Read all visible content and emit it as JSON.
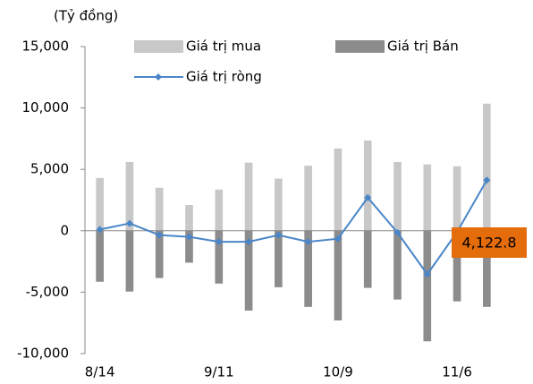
{
  "chart_data": {
    "type": "bar",
    "y_axis_label": "(Tỷ đồng)",
    "categories": [
      "8/14",
      null,
      null,
      null,
      "9/11",
      null,
      null,
      null,
      "10/9",
      null,
      null,
      null,
      "11/6",
      null
    ],
    "series": [
      {
        "name": "Giá trị mua",
        "type": "bar",
        "color": "#c8c8c8",
        "values": [
          4300,
          5600,
          3500,
          2100,
          3350,
          5550,
          4250,
          5300,
          6700,
          7350,
          5600,
          5400,
          5250,
          10350
        ]
      },
      {
        "name": "Giá trị Bán",
        "type": "bar",
        "color": "#8c8c8c",
        "values": [
          -4150,
          -4950,
          -3850,
          -2600,
          -4300,
          -6500,
          -4600,
          -6200,
          -7300,
          -4650,
          -5600,
          -9000,
          -5750,
          -6200
        ]
      },
      {
        "name": "Giá trị ròng",
        "type": "line",
        "color": "#4a86c8",
        "values": [
          100,
          600,
          -350,
          -500,
          -900,
          -900,
          -350,
          -900,
          -650,
          2700,
          -150,
          -3550,
          -100,
          4122.8
        ],
        "value_labels": [
          null,
          null,
          null,
          null,
          null,
          null,
          null,
          null,
          null,
          null,
          null,
          null,
          null,
          "4,122.8"
        ]
      }
    ],
    "ylim": [
      -10000,
      15000
    ],
    "yticks": [
      {
        "value": -10000,
        "label": "-10,000"
      },
      {
        "value": -5000,
        "label": "-5,000"
      },
      0,
      {
        "value": 5000,
        "label": "5,000"
      },
      {
        "value": 10000,
        "label": "10,000"
      },
      {
        "value": 15000,
        "label": "15,000"
      }
    ],
    "annotation_color": "#e46c0a"
  }
}
